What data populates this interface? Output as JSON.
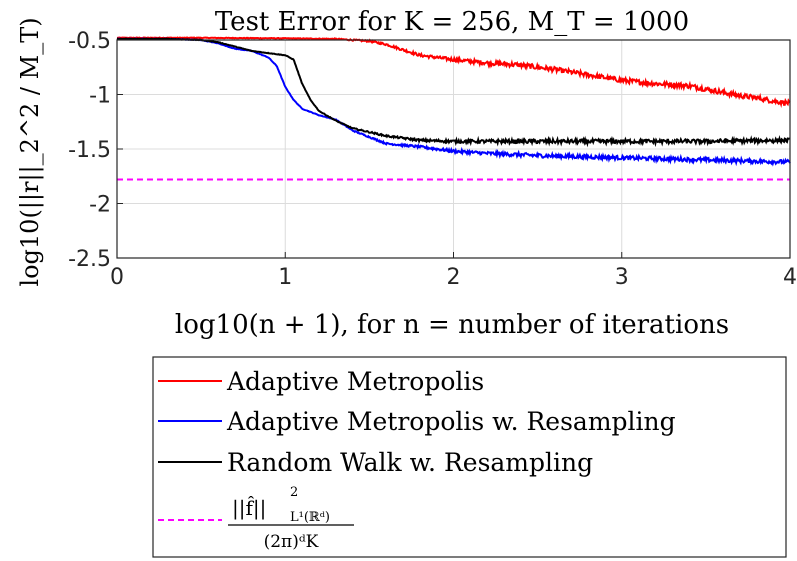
{
  "chart_data": {
    "type": "line",
    "title": "Test Error for K = 256, M_T = 1000",
    "xlabel": "log10(n + 1), for n = number of iterations",
    "ylabel": "log10(||r||_2^2 / M_T)",
    "xlim": [
      0,
      4
    ],
    "ylim": [
      -2.5,
      -0.5
    ],
    "xticks": [
      0,
      1,
      2,
      3,
      4
    ],
    "xtick_labels": [
      "0",
      "1",
      "2",
      "3",
      "4"
    ],
    "yticks": [
      -0.5,
      -1,
      -1.5,
      -2,
      -2.5
    ],
    "ytick_labels": [
      "-0.5",
      "-1",
      "-1.5",
      "-2",
      "-2.5"
    ],
    "grid": true,
    "legend_position": "below",
    "series": [
      {
        "name": "Adaptive Metropolis",
        "color": "#ff0000",
        "noise": 0.012,
        "x": [
          0,
          0.5,
          1.0,
          1.3,
          1.5,
          1.6,
          1.7,
          1.8,
          1.9,
          2.0,
          2.2,
          2.4,
          2.6,
          2.8,
          3.0,
          3.2,
          3.4,
          3.5,
          3.6,
          3.7,
          3.8,
          3.9,
          4.0
        ],
        "y": [
          -0.48,
          -0.48,
          -0.485,
          -0.49,
          -0.51,
          -0.54,
          -0.59,
          -0.64,
          -0.66,
          -0.68,
          -0.71,
          -0.73,
          -0.77,
          -0.82,
          -0.87,
          -0.9,
          -0.92,
          -0.95,
          -0.98,
          -1.01,
          -1.03,
          -1.06,
          -1.08
        ]
      },
      {
        "name": "Adaptive Metropolis w. Resampling",
        "color": "#0000ff",
        "noise": 0.01,
        "x": [
          0,
          0.3,
          0.5,
          0.6,
          0.7,
          0.8,
          0.9,
          0.95,
          1.0,
          1.05,
          1.1,
          1.2,
          1.3,
          1.4,
          1.6,
          1.8,
          2.0,
          2.2,
          2.5,
          3.0,
          3.5,
          4.0
        ],
        "y": [
          -0.49,
          -0.49,
          -0.5,
          -0.53,
          -0.58,
          -0.6,
          -0.66,
          -0.74,
          -0.93,
          -1.05,
          -1.13,
          -1.19,
          -1.23,
          -1.33,
          -1.45,
          -1.48,
          -1.52,
          -1.54,
          -1.56,
          -1.58,
          -1.6,
          -1.62
        ]
      },
      {
        "name": "Random Walk w. Resampling",
        "color": "#000000",
        "noise": 0.01,
        "x": [
          0,
          0.3,
          0.5,
          0.6,
          0.7,
          0.8,
          0.9,
          1.0,
          1.05,
          1.1,
          1.15,
          1.2,
          1.3,
          1.4,
          1.6,
          1.8,
          2.0,
          2.5,
          3.0,
          3.5,
          4.0
        ],
        "y": [
          -0.49,
          -0.49,
          -0.5,
          -0.52,
          -0.56,
          -0.6,
          -0.62,
          -0.64,
          -0.68,
          -0.9,
          -1.05,
          -1.15,
          -1.24,
          -1.31,
          -1.38,
          -1.42,
          -1.43,
          -1.43,
          -1.43,
          -1.43,
          -1.42
        ]
      },
      {
        "name": "||f̂||²_{L¹(ℝᵈ)} / ((2π)ᵈ K)",
        "color": "#ff00ff",
        "dashed": true,
        "x": [
          0,
          4
        ],
        "y": [
          -1.78,
          -1.78
        ]
      }
    ],
    "legend": {
      "entries": [
        "Adaptive Metropolis",
        "Adaptive Metropolis w. Resampling",
        "Random Walk w. Resampling"
      ],
      "formula_numerator": "||f̂||",
      "formula_sup": "2",
      "formula_sub": "L¹(ℝᵈ)",
      "formula_denominator": "(2π)ᵈK"
    }
  }
}
